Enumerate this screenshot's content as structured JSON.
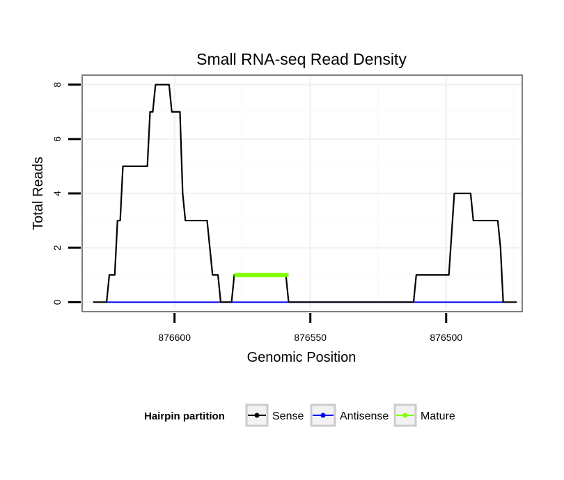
{
  "chart_data": {
    "type": "line",
    "title": "Small RNA-seq Read Density",
    "xlabel": "Genomic Position",
    "ylabel": "Total Reads",
    "xlim": [
      876634,
      876472
    ],
    "x_reversed": true,
    "ylim": [
      -0.35,
      8.35
    ],
    "xticks": [
      876600,
      876550,
      876500
    ],
    "xtick_labels": [
      "876600",
      "876550",
      "876500"
    ],
    "yticks": [
      0,
      2,
      4,
      6,
      8
    ],
    "ytick_labels": [
      "0",
      "2",
      "4",
      "6",
      "8"
    ],
    "grid": true,
    "legend": {
      "title": "Hairpin partition",
      "position": "bottom",
      "entries": [
        {
          "label": "Sense",
          "color": "#000000"
        },
        {
          "label": "Antisense",
          "color": "#0000ff"
        },
        {
          "label": "Mature",
          "color": "#7fff00"
        }
      ]
    },
    "series": [
      {
        "name": "Sense",
        "color": "#000000",
        "points": [
          [
            876630,
            0
          ],
          [
            876625,
            0
          ],
          [
            876624,
            1
          ],
          [
            876622,
            1
          ],
          [
            876621,
            3
          ],
          [
            876620,
            3
          ],
          [
            876619,
            5
          ],
          [
            876610,
            5
          ],
          [
            876609,
            7
          ],
          [
            876608,
            7
          ],
          [
            876607,
            8
          ],
          [
            876602,
            8
          ],
          [
            876601,
            7
          ],
          [
            876598,
            7
          ],
          [
            876597,
            4
          ],
          [
            876596,
            3
          ],
          [
            876588,
            3
          ],
          [
            876586,
            1
          ],
          [
            876584,
            1
          ],
          [
            876583,
            0
          ],
          [
            876579,
            0
          ],
          [
            876578,
            1
          ],
          [
            876559,
            1
          ],
          [
            876558,
            0
          ],
          [
            876512,
            0
          ],
          [
            876511,
            1
          ],
          [
            876499,
            1
          ],
          [
            876497,
            4
          ],
          [
            876491,
            4
          ],
          [
            876490,
            3
          ],
          [
            876481,
            3
          ],
          [
            876480,
            2
          ],
          [
            876479,
            0
          ],
          [
            876474,
            0
          ]
        ]
      },
      {
        "name": "Antisense",
        "color": "#0000ff",
        "points": [
          [
            876625,
            0
          ],
          [
            876479,
            0
          ]
        ]
      },
      {
        "name": "Mature",
        "color": "#7fff00",
        "points": [
          [
            876578,
            1
          ],
          [
            876558,
            1
          ]
        ]
      }
    ]
  }
}
